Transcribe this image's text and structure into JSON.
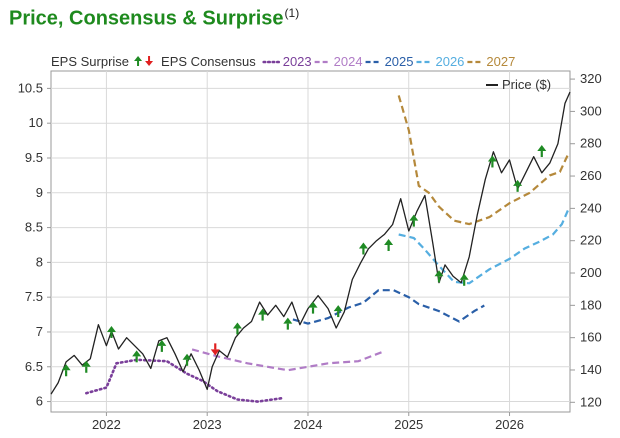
{
  "title": "Price, Consensus & Surprise",
  "footnote": "(1)",
  "chart_data": {
    "type": "line",
    "legend": {
      "surprise_label": "EPS Surprise",
      "consensus_label": "EPS Consensus",
      "placement": "top",
      "price_label": "Price ($)"
    },
    "x_ticks": [
      "2022",
      "2023",
      "2024",
      "2025",
      "2026"
    ],
    "x_range": [
      2021.45,
      2026.6
    ],
    "eps_axis": {
      "side": "left",
      "range": [
        5.85,
        10.75
      ],
      "ticks": [
        "6",
        "6.5",
        "7",
        "7.5",
        "8",
        "8.5",
        "9",
        "9.5",
        "10",
        "10.5"
      ]
    },
    "price_axis": {
      "side": "right",
      "range": [
        114,
        325
      ],
      "ticks": [
        "120",
        "140",
        "160",
        "180",
        "200",
        "220",
        "240",
        "260",
        "280",
        "300",
        "320"
      ]
    },
    "consensus_series": [
      {
        "name": "2023",
        "color": "#7a3f9a",
        "style": "dotted",
        "points": [
          [
            2021.8,
            6.12
          ],
          [
            2022.0,
            6.2
          ],
          [
            2022.1,
            6.55
          ],
          [
            2022.3,
            6.6
          ],
          [
            2022.6,
            6.58
          ],
          [
            2022.8,
            6.4
          ],
          [
            2022.95,
            6.3
          ],
          [
            2023.1,
            6.15
          ],
          [
            2023.3,
            6.03
          ],
          [
            2023.5,
            6.0
          ],
          [
            2023.75,
            6.05
          ]
        ]
      },
      {
        "name": "2024",
        "color": "#b07cc6",
        "style": "dashed",
        "points": [
          [
            2022.85,
            6.75
          ],
          [
            2023.1,
            6.65
          ],
          [
            2023.4,
            6.55
          ],
          [
            2023.6,
            6.5
          ],
          [
            2023.8,
            6.45
          ],
          [
            2024.0,
            6.5
          ],
          [
            2024.2,
            6.55
          ],
          [
            2024.5,
            6.58
          ],
          [
            2024.75,
            6.72
          ]
        ]
      },
      {
        "name": "2025",
        "color": "#2a5fa8",
        "style": "dashed",
        "points": [
          [
            2023.85,
            7.18
          ],
          [
            2024.0,
            7.12
          ],
          [
            2024.2,
            7.2
          ],
          [
            2024.4,
            7.35
          ],
          [
            2024.55,
            7.42
          ],
          [
            2024.7,
            7.6
          ],
          [
            2024.85,
            7.6
          ],
          [
            2025.0,
            7.5
          ],
          [
            2025.1,
            7.4
          ],
          [
            2025.3,
            7.3
          ],
          [
            2025.5,
            7.15
          ],
          [
            2025.65,
            7.3
          ],
          [
            2025.75,
            7.38
          ]
        ]
      },
      {
        "name": "2026",
        "color": "#55aee0",
        "style": "dashed",
        "points": [
          [
            2024.9,
            8.4
          ],
          [
            2025.05,
            8.35
          ],
          [
            2025.15,
            8.2
          ],
          [
            2025.3,
            7.95
          ],
          [
            2025.45,
            7.72
          ],
          [
            2025.6,
            7.7
          ],
          [
            2025.8,
            7.9
          ],
          [
            2026.0,
            8.05
          ],
          [
            2026.15,
            8.2
          ],
          [
            2026.3,
            8.3
          ],
          [
            2026.43,
            8.4
          ],
          [
            2026.52,
            8.55
          ],
          [
            2026.58,
            8.75
          ]
        ]
      },
      {
        "name": "2027",
        "color": "#b5893b",
        "style": "dashed",
        "points": [
          [
            2024.9,
            10.4
          ],
          [
            2025.0,
            9.9
          ],
          [
            2025.1,
            9.1
          ],
          [
            2025.2,
            9.0
          ],
          [
            2025.3,
            8.8
          ],
          [
            2025.45,
            8.6
          ],
          [
            2025.6,
            8.55
          ],
          [
            2025.8,
            8.65
          ],
          [
            2026.0,
            8.85
          ],
          [
            2026.2,
            9.0
          ],
          [
            2026.4,
            9.25
          ],
          [
            2026.5,
            9.3
          ],
          [
            2026.58,
            9.55
          ]
        ]
      }
    ],
    "price_series": {
      "name": "Price ($)",
      "color": "#222222",
      "points": [
        [
          2021.45,
          125
        ],
        [
          2021.52,
          132
        ],
        [
          2021.6,
          145
        ],
        [
          2021.68,
          149
        ],
        [
          2021.76,
          143
        ],
        [
          2021.84,
          147
        ],
        [
          2021.92,
          168
        ],
        [
          2022.0,
          155
        ],
        [
          2022.05,
          164
        ],
        [
          2022.12,
          153
        ],
        [
          2022.2,
          160
        ],
        [
          2022.28,
          155
        ],
        [
          2022.36,
          150
        ],
        [
          2022.44,
          141
        ],
        [
          2022.52,
          158
        ],
        [
          2022.6,
          160
        ],
        [
          2022.68,
          150
        ],
        [
          2022.76,
          139
        ],
        [
          2022.84,
          150
        ],
        [
          2022.92,
          140
        ],
        [
          2023.0,
          128
        ],
        [
          2023.05,
          142
        ],
        [
          2023.12,
          152
        ],
        [
          2023.2,
          148
        ],
        [
          2023.28,
          160
        ],
        [
          2023.36,
          166
        ],
        [
          2023.44,
          170
        ],
        [
          2023.52,
          182
        ],
        [
          2023.6,
          174
        ],
        [
          2023.68,
          180
        ],
        [
          2023.76,
          173
        ],
        [
          2023.84,
          182
        ],
        [
          2023.92,
          168
        ],
        [
          2024.0,
          178
        ],
        [
          2024.1,
          186
        ],
        [
          2024.2,
          178
        ],
        [
          2024.28,
          166
        ],
        [
          2024.36,
          176
        ],
        [
          2024.44,
          196
        ],
        [
          2024.52,
          206
        ],
        [
          2024.6,
          215
        ],
        [
          2024.68,
          220
        ],
        [
          2024.76,
          224
        ],
        [
          2024.84,
          230
        ],
        [
          2024.92,
          246
        ],
        [
          2025.0,
          226
        ],
        [
          2025.08,
          238
        ],
        [
          2025.16,
          248
        ],
        [
          2025.24,
          218
        ],
        [
          2025.3,
          194
        ],
        [
          2025.36,
          205
        ],
        [
          2025.44,
          198
        ],
        [
          2025.52,
          194
        ],
        [
          2025.6,
          210
        ],
        [
          2025.68,
          236
        ],
        [
          2025.76,
          258
        ],
        [
          2025.84,
          275
        ],
        [
          2025.92,
          262
        ],
        [
          2026.0,
          270
        ],
        [
          2026.08,
          252
        ],
        [
          2026.16,
          262
        ],
        [
          2026.24,
          272
        ],
        [
          2026.32,
          262
        ],
        [
          2026.4,
          268
        ],
        [
          2026.48,
          280
        ],
        [
          2026.55,
          305
        ],
        [
          2026.6,
          312
        ]
      ]
    },
    "surprises": [
      {
        "x": 2021.6,
        "eps": 6.45,
        "direction": "up"
      },
      {
        "x": 2021.8,
        "eps": 6.5,
        "direction": "up"
      },
      {
        "x": 2022.05,
        "eps": 7.0,
        "direction": "up"
      },
      {
        "x": 2022.3,
        "eps": 6.65,
        "direction": "up"
      },
      {
        "x": 2022.55,
        "eps": 6.8,
        "direction": "up"
      },
      {
        "x": 2022.8,
        "eps": 6.6,
        "direction": "up"
      },
      {
        "x": 2023.08,
        "eps": 6.75,
        "direction": "down"
      },
      {
        "x": 2023.3,
        "eps": 7.05,
        "direction": "up"
      },
      {
        "x": 2023.55,
        "eps": 7.25,
        "direction": "up"
      },
      {
        "x": 2023.8,
        "eps": 7.12,
        "direction": "up"
      },
      {
        "x": 2024.05,
        "eps": 7.35,
        "direction": "up"
      },
      {
        "x": 2024.3,
        "eps": 7.3,
        "direction": "up"
      },
      {
        "x": 2024.55,
        "eps": 8.2,
        "direction": "up"
      },
      {
        "x": 2024.8,
        "eps": 8.25,
        "direction": "up"
      },
      {
        "x": 2025.05,
        "eps": 8.6,
        "direction": "up"
      },
      {
        "x": 2025.3,
        "eps": 7.8,
        "direction": "up"
      },
      {
        "x": 2025.55,
        "eps": 7.75,
        "direction": "up"
      },
      {
        "x": 2025.83,
        "eps": 9.45,
        "direction": "up"
      },
      {
        "x": 2026.08,
        "eps": 9.1,
        "direction": "up"
      },
      {
        "x": 2026.32,
        "eps": 9.6,
        "direction": "up"
      }
    ],
    "grid": true
  },
  "colors": {
    "title": "#1e8a1e",
    "up_arrow": "#1f8b24",
    "down_arrow": "#e02020",
    "grid": "#d9d9d9",
    "axis": "#9a9a9a"
  }
}
